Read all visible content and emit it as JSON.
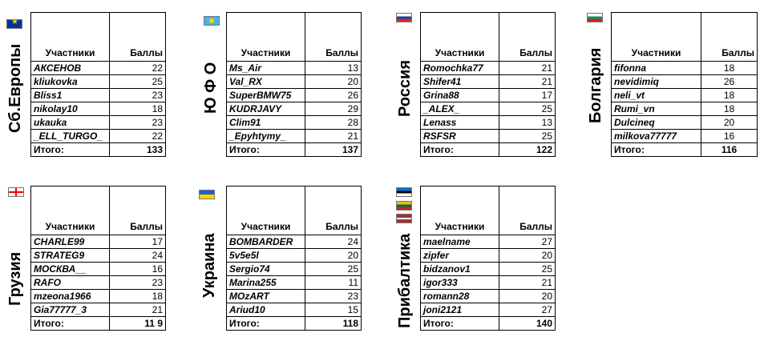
{
  "header": {
    "col_participants": "Участники",
    "col_points": "Баллы",
    "total_label": "Итого:"
  },
  "groups": [
    {
      "region": "Сб.Европы",
      "flag": "eu-flag",
      "rows": [
        {
          "name": "АКСЕНОВ",
          "pts": "22"
        },
        {
          "name": "kliukovka",
          "pts": "25"
        },
        {
          "name": "Bliss1",
          "pts": "23"
        },
        {
          "name": "nikolay10",
          "pts": "18"
        },
        {
          "name": "ukauka",
          "pts": "23"
        },
        {
          "name": "_ELL_TURGO_",
          "pts": "22"
        }
      ],
      "total": "133"
    },
    {
      "region": "Ю Ф О",
      "flag": "kazakhstan-flag",
      "rows": [
        {
          "name": "Ms_Air",
          "pts": "13"
        },
        {
          "name": "Val_RX",
          "pts": "20"
        },
        {
          "name": "SuperBMW75",
          "pts": "26"
        },
        {
          "name": "KUDRJAVY",
          "pts": "29"
        },
        {
          "name": "Clim91",
          "pts": "28"
        },
        {
          "name": "_Epyhtymy_",
          "pts": "21"
        }
      ],
      "total": "137"
    },
    {
      "region": "Россия",
      "flag": "russia-flag",
      "rows": [
        {
          "name": "Romochka77",
          "pts": "21"
        },
        {
          "name": "Shifer41",
          "pts": "21"
        },
        {
          "name": "Grina88",
          "pts": "17"
        },
        {
          "name": "_ALEX_",
          "pts": "25"
        },
        {
          "name": "Lenass",
          "pts": "13"
        },
        {
          "name": "RSFSR",
          "pts": "25"
        }
      ],
      "total": "122"
    },
    {
      "region": "Болгария",
      "flag": "bulgaria-flag",
      "rows": [
        {
          "name": "fifonna",
          "pts": "18"
        },
        {
          "name": "nevidimiq",
          "pts": "26"
        },
        {
          "name": "neli_vt",
          "pts": "18"
        },
        {
          "name": "Rumi_vn",
          "pts": "18"
        },
        {
          "name": "Dulcineq",
          "pts": "20"
        },
        {
          "name": "milkova77777",
          "pts": "16"
        }
      ],
      "total": "116"
    },
    {
      "region": "Грузия",
      "flag": "georgia-flag",
      "rows": [
        {
          "name": "CHARLE99",
          "pts": "17"
        },
        {
          "name": "STRATEG9",
          "pts": "24"
        },
        {
          "name": "МОСКВА__",
          "pts": "16"
        },
        {
          "name": "RAFO",
          "pts": "23"
        },
        {
          "name": "mzeona1966",
          "pts": "18"
        },
        {
          "name": "Gia77777_3",
          "pts": "21"
        }
      ],
      "total": "11 9"
    },
    {
      "region": "Украина",
      "flag": "ukraine-flag",
      "rows": [
        {
          "name": "BOMBARDER",
          "pts": "24"
        },
        {
          "name": "5v5e5l",
          "pts": "20"
        },
        {
          "name": "Sergio74",
          "pts": "25"
        },
        {
          "name": "Marina255",
          "pts": "11"
        },
        {
          "name": "MOzART",
          "pts": "23"
        },
        {
          "name": "Ariud10",
          "pts": "15"
        }
      ],
      "total": "118"
    },
    {
      "region": "Прибалтика",
      "flag": "baltic-flags",
      "rows": [
        {
          "name": "maelname",
          "pts": "27"
        },
        {
          "name": "zipfer",
          "pts": "20"
        },
        {
          "name": "bidzanov1",
          "pts": "25"
        },
        {
          "name": "igor333",
          "pts": "21"
        },
        {
          "name": "romann28",
          "pts": "20"
        },
        {
          "name": "joni2121",
          "pts": "27"
        }
      ],
      "total": "140"
    }
  ]
}
